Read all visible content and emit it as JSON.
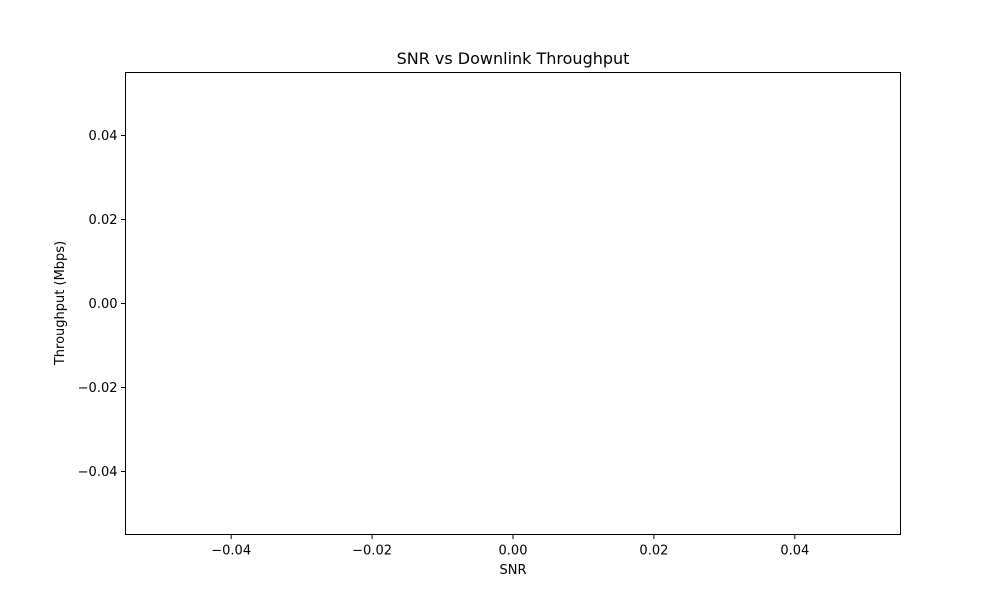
{
  "chart_data": {
    "type": "scatter",
    "title": "SNR vs Downlink Throughput",
    "xlabel": "SNR",
    "ylabel": "Throughput (Mbps)",
    "xlim": [
      -0.055,
      0.055
    ],
    "ylim": [
      -0.055,
      0.055
    ],
    "xticks": [
      -0.04,
      -0.02,
      0.0,
      0.02,
      0.04
    ],
    "xtick_labels": [
      "−0.04",
      "−0.02",
      "0.00",
      "0.02",
      "0.04"
    ],
    "yticks": [
      -0.04,
      -0.02,
      0.0,
      0.02,
      0.04
    ],
    "ytick_labels": [
      "−0.04",
      "−0.02",
      "0.00",
      "0.02",
      "0.04"
    ],
    "series": [
      {
        "x": [],
        "y": []
      }
    ],
    "grid": false,
    "legend": "none",
    "colors": {
      "axes": "#000000",
      "background": "#ffffff"
    }
  }
}
